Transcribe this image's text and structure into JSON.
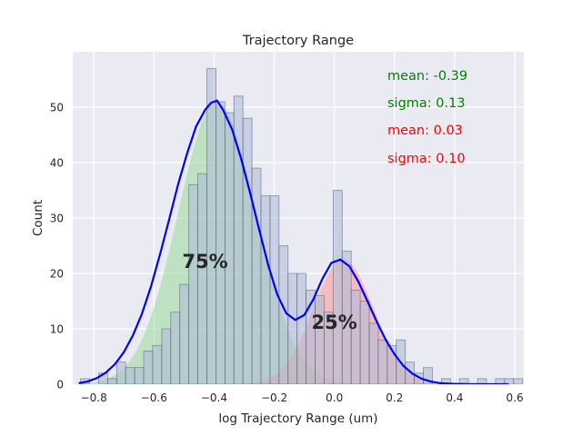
{
  "chart_data": {
    "type": "bar",
    "title": "Trajectory Range",
    "xlabel": "log Trajectory Range (um)",
    "ylabel": "Count",
    "xlim": [
      -0.87,
      0.63
    ],
    "ylim": [
      0,
      60
    ],
    "grid": true,
    "x_ticks": [
      -0.8,
      -0.6,
      -0.4,
      -0.2,
      0.0,
      0.2,
      0.4,
      0.6
    ],
    "x_tick_labels": [
      "−0.8",
      "−0.6",
      "−0.4",
      "−0.2",
      "0.0",
      "0.2",
      "0.4",
      "0.6"
    ],
    "y_ticks": [
      0,
      10,
      20,
      30,
      40,
      50
    ],
    "y_tick_labels": [
      "0",
      "10",
      "20",
      "30",
      "40",
      "50"
    ],
    "histogram": {
      "bin_width": 0.03,
      "bin_centers": [
        -0.829,
        -0.799,
        -0.769,
        -0.739,
        -0.709,
        -0.679,
        -0.649,
        -0.619,
        -0.589,
        -0.559,
        -0.529,
        -0.499,
        -0.469,
        -0.439,
        -0.409,
        -0.379,
        -0.349,
        -0.319,
        -0.289,
        -0.259,
        -0.229,
        -0.199,
        -0.169,
        -0.139,
        -0.109,
        -0.079,
        -0.049,
        -0.019,
        0.011,
        0.041,
        0.071,
        0.101,
        0.131,
        0.161,
        0.191,
        0.221,
        0.251,
        0.281,
        0.311,
        0.341,
        0.371,
        0.401,
        0.431,
        0.461,
        0.491,
        0.521,
        0.551,
        0.581,
        0.611
      ],
      "counts": [
        1,
        0,
        2,
        1,
        4,
        3,
        3,
        6,
        7,
        10,
        13,
        18,
        36,
        38,
        57,
        51,
        49,
        52,
        48,
        39,
        34,
        34,
        25,
        20,
        20,
        17,
        16,
        13,
        35,
        24,
        17,
        15,
        11,
        8,
        7,
        8,
        4,
        2,
        3,
        0,
        1,
        0,
        1,
        0,
        1,
        0,
        1,
        1,
        1
      ]
    },
    "fit_curve": {
      "color": "#0000ff",
      "x": [
        -0.85,
        -0.82,
        -0.79,
        -0.76,
        -0.73,
        -0.7,
        -0.67,
        -0.64,
        -0.61,
        -0.58,
        -0.55,
        -0.52,
        -0.49,
        -0.46,
        -0.43,
        -0.41,
        -0.39,
        -0.37,
        -0.34,
        -0.31,
        -0.28,
        -0.25,
        -0.22,
        -0.19,
        -0.16,
        -0.13,
        -0.1,
        -0.07,
        -0.04,
        -0.01,
        0.02,
        0.05,
        0.08,
        0.11,
        0.14,
        0.17,
        0.2,
        0.23,
        0.26,
        0.29,
        0.32,
        0.35,
        0.38,
        0.41,
        0.44,
        0.47,
        0.5,
        0.53,
        0.56,
        0.58
      ],
      "y": [
        0.2,
        0.5,
        1.1,
        2.1,
        3.6,
        5.8,
        8.8,
        12.7,
        17.6,
        23.4,
        29.6,
        36.0,
        41.6,
        46.5,
        49.5,
        50.8,
        51.2,
        49.5,
        46.0,
        40.7,
        34.5,
        27.9,
        21.5,
        16.2,
        12.8,
        11.6,
        12.5,
        15.3,
        19.0,
        21.9,
        22.5,
        21.3,
        18.5,
        15.0,
        11.4,
        8.1,
        5.4,
        3.3,
        1.9,
        1.0,
        0.5,
        0.2,
        0.1,
        0.05,
        0.02,
        0.01,
        0.0,
        0.0,
        0.0,
        0.0
      ]
    },
    "components": [
      {
        "weight_label": "75%",
        "mean_label": "mean: -0.39",
        "sigma_label": "sigma: 0.13",
        "mean": -0.39,
        "sigma": 0.13,
        "peak": 51,
        "color": "#008000",
        "fill": "#90d890",
        "percent_position": [
          -0.43,
          21
        ]
      },
      {
        "weight_label": "25%",
        "mean_label": "mean: 0.03",
        "sigma_label": "sigma: 0.10",
        "mean": 0.03,
        "sigma": 0.1,
        "peak": 22.5,
        "color": "#ff0000",
        "fill": "#ff8c8c",
        "percent_position": [
          0.0,
          10
        ]
      }
    ],
    "colors": {
      "plot_bg": "#eaeaf2",
      "bar_fill": "#b0bdd9",
      "bar_edge": "#505a6e",
      "grid": "#ffffff"
    }
  }
}
